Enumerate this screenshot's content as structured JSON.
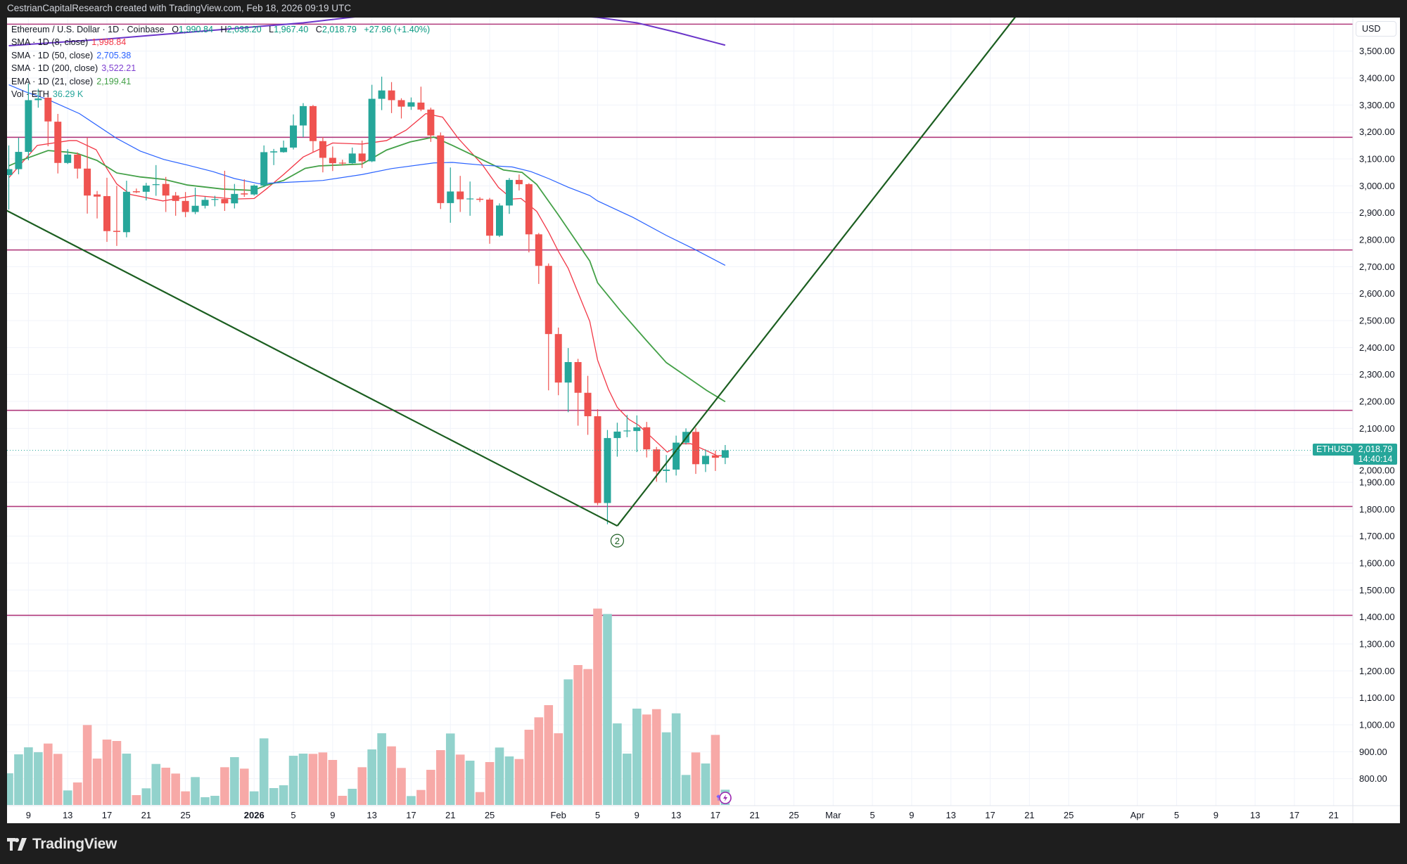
{
  "header": {
    "credit": "CestrianCapitalResearch created with TradingView.com, Feb 18, 2026 09:19 UTC"
  },
  "footer": {
    "brand": "TradingView"
  },
  "legend": {
    "symbol": "Ethereum / U.S. Dollar · 1D · Coinbase",
    "o_label": "O",
    "o_value": "1,990.84",
    "h_label": "H",
    "h_value": "2,038.20",
    "l_label": "L",
    "l_value": "1,967.40",
    "c_label": "C",
    "c_value": "2,018.79",
    "change": "+27.96 (+1.40%)",
    "indicators": [
      {
        "label": "SMA · 1D (8, close)",
        "value": "1,998.84",
        "color": "#f23645"
      },
      {
        "label": "SMA · 1D (50, close)",
        "value": "2,705.38",
        "color": "#2962ff"
      },
      {
        "label": "SMA · 1D (200, close)",
        "value": "3,522.21",
        "color": "#7e3fd0"
      },
      {
        "label": "EMA · 1D (21, close)",
        "value": "2,199.41",
        "color": "#43a047"
      },
      {
        "label": "Vol · ETH",
        "value": "36.29 K",
        "color": "#26a69a"
      }
    ]
  },
  "price_axis": {
    "currency": "USD",
    "symbol_tag": "ETHUSD",
    "last_price": "2,018.79",
    "countdown": "14:40:14"
  },
  "colors": {
    "up": "#26a69a",
    "down": "#ef5350",
    "vol_up": "#92d2cc",
    "vol_down": "#f7a9a7",
    "hline": "#b03a7c",
    "trendline": "#1b5e20",
    "sma8": "#f23645",
    "sma50": "#2962ff",
    "sma200": "#6a35c9",
    "ema21": "#43a047"
  },
  "chart_data": {
    "type": "candlestick",
    "title": "Ethereum / U.S. Dollar · 1D · Coinbase",
    "x_note": "index 0 = Dec 7, 2025, daily bars",
    "ylim": [
      700,
      3620
    ],
    "yticks": [
      "3,500.00",
      "3,400.00",
      "3,300.00",
      "3,200.00",
      "3,100.00",
      "3,000.00",
      "2,900.00",
      "2,800.00",
      "2,700.00",
      "2,600.00",
      "2,500.00",
      "2,400.00",
      "2,300.00",
      "2,200.00",
      "2,100.00",
      "2,000.00",
      "1,900.00",
      "1,800.00",
      "1,700.00",
      "1,600.00",
      "1,500.00",
      "1,400.00",
      "1,300.00",
      "1,200.00",
      "1,100.00",
      "1,000.00",
      "900.00",
      "800.00"
    ],
    "ytick_values": [
      3500,
      3400,
      3300,
      3200,
      3100,
      3000,
      2900,
      2800,
      2700,
      2600,
      2500,
      2400,
      2300,
      2200,
      2100,
      2000,
      1900,
      1800,
      1700,
      1600,
      1500,
      1400,
      1300,
      1200,
      1100,
      1000,
      900,
      800
    ],
    "xticks": [
      {
        "i": 2,
        "label": "9"
      },
      {
        "i": 6,
        "label": "13"
      },
      {
        "i": 10,
        "label": "17"
      },
      {
        "i": 14,
        "label": "21"
      },
      {
        "i": 18,
        "label": "25"
      },
      {
        "i": 25,
        "label": "2026",
        "bold": true
      },
      {
        "i": 29,
        "label": "5"
      },
      {
        "i": 33,
        "label": "9"
      },
      {
        "i": 37,
        "label": "13"
      },
      {
        "i": 41,
        "label": "17"
      },
      {
        "i": 45,
        "label": "21"
      },
      {
        "i": 49,
        "label": "25"
      },
      {
        "i": 56,
        "label": "Feb"
      },
      {
        "i": 60,
        "label": "5"
      },
      {
        "i": 64,
        "label": "9"
      },
      {
        "i": 68,
        "label": "13"
      },
      {
        "i": 72,
        "label": "17"
      },
      {
        "i": 76,
        "label": "21"
      },
      {
        "i": 80,
        "label": "25"
      },
      {
        "i": 84,
        "label": "Mar"
      },
      {
        "i": 88,
        "label": "5"
      },
      {
        "i": 92,
        "label": "9"
      },
      {
        "i": 96,
        "label": "13"
      },
      {
        "i": 100,
        "label": "17"
      },
      {
        "i": 104,
        "label": "21"
      },
      {
        "i": 108,
        "label": "25"
      },
      {
        "i": 115,
        "label": "Apr"
      },
      {
        "i": 119,
        "label": "5"
      },
      {
        "i": 123,
        "label": "9"
      },
      {
        "i": 127,
        "label": "13"
      },
      {
        "i": 131,
        "label": "17"
      },
      {
        "i": 135,
        "label": "21"
      }
    ],
    "ohlc": [
      [
        3040,
        3150,
        2912,
        3062
      ],
      [
        3062,
        3179,
        3043,
        3126
      ],
      [
        3126,
        3380,
        3095,
        3318
      ],
      [
        3318,
        3360,
        3290,
        3324
      ],
      [
        3327,
        3330,
        3147,
        3239
      ],
      [
        3238,
        3267,
        3046,
        3085
      ],
      [
        3085,
        3136,
        3081,
        3116
      ],
      [
        3116,
        3124,
        3027,
        3064
      ],
      [
        3064,
        3179,
        2897,
        2964
      ],
      [
        2968,
        2981,
        2879,
        2960
      ],
      [
        2962,
        3030,
        2792,
        2832
      ],
      [
        2833,
        3000,
        2777,
        2829
      ],
      [
        2828,
        3019,
        2809,
        2978
      ],
      [
        2980,
        2990,
        2973,
        2976
      ],
      [
        2978,
        3011,
        2946,
        3001
      ],
      [
        3003,
        3077,
        2963,
        3006
      ],
      [
        3007,
        3033,
        2903,
        2964
      ],
      [
        2964,
        2977,
        2889,
        2944
      ],
      [
        2944,
        2977,
        2884,
        2903
      ],
      [
        2903,
        2993,
        2895,
        2926
      ],
      [
        2926,
        2959,
        2916,
        2948
      ],
      [
        2948,
        2963,
        2924,
        2951
      ],
      [
        2951,
        3056,
        2907,
        2935
      ],
      [
        2935,
        3007,
        2916,
        2970
      ],
      [
        2972,
        3024,
        2959,
        2968
      ],
      [
        2968,
        3005,
        2964,
        3001
      ],
      [
        3001,
        3150,
        2995,
        3125
      ],
      [
        3124,
        3137,
        3077,
        3128
      ],
      [
        3125,
        3168,
        3123,
        3142
      ],
      [
        3142,
        3265,
        3135,
        3224
      ],
      [
        3224,
        3307,
        3181,
        3296
      ],
      [
        3296,
        3300,
        3124,
        3166
      ],
      [
        3166,
        3181,
        3050,
        3104
      ],
      [
        3104,
        3146,
        3055,
        3084
      ],
      [
        3086,
        3097,
        3075,
        3083
      ],
      [
        3084,
        3142,
        3082,
        3120
      ],
      [
        3120,
        3168,
        3066,
        3091
      ],
      [
        3091,
        3375,
        3088,
        3323
      ],
      [
        3323,
        3405,
        3281,
        3354
      ],
      [
        3354,
        3385,
        3270,
        3318
      ],
      [
        3318,
        3325,
        3250,
        3294
      ],
      [
        3294,
        3328,
        3282,
        3310
      ],
      [
        3309,
        3368,
        3277,
        3283
      ],
      [
        3283,
        3290,
        3163,
        3187
      ],
      [
        3187,
        3198,
        2914,
        2936
      ],
      [
        2936,
        3068,
        2863,
        2979
      ],
      [
        2979,
        3037,
        2903,
        2950
      ],
      [
        2950,
        3016,
        2889,
        2953
      ],
      [
        2952,
        2958,
        2940,
        2948
      ],
      [
        2949,
        2955,
        2785,
        2815
      ],
      [
        2815,
        2935,
        2810,
        2927
      ],
      [
        2927,
        3029,
        2896,
        3022
      ],
      [
        3022,
        3042,
        2983,
        3006
      ],
      [
        3006,
        3010,
        2753,
        2820
      ],
      [
        2820,
        2825,
        2636,
        2703
      ],
      [
        2703,
        2712,
        2241,
        2450
      ],
      [
        2450,
        2474,
        2223,
        2270
      ],
      [
        2270,
        2398,
        2160,
        2346
      ],
      [
        2346,
        2358,
        2110,
        2232
      ],
      [
        2232,
        2295,
        2076,
        2145
      ],
      [
        2145,
        2171,
        1815,
        1823
      ],
      [
        1823,
        2094,
        1744,
        2064
      ],
      [
        2064,
        2121,
        1995,
        2088
      ],
      [
        2089,
        2150,
        2067,
        2092
      ],
      [
        2090,
        2148,
        2012,
        2104
      ],
      [
        2104,
        2124,
        1992,
        2022
      ],
      [
        2022,
        2031,
        1902,
        1940
      ],
      [
        1942,
        2001,
        1899,
        1947
      ],
      [
        1947,
        2073,
        1925,
        2047
      ],
      [
        2047,
        2100,
        2040,
        2087
      ],
      [
        2087,
        2102,
        1931,
        1967
      ],
      [
        1967,
        2022,
        1938,
        1998
      ],
      [
        2000,
        2018,
        1942,
        1990.84
      ],
      [
        1990.84,
        2038.2,
        1967.4,
        2018.79
      ]
    ],
    "volume_k": [
      75.4,
      120.6,
      137.3,
      125.6,
      146.3,
      121.7,
      34.6,
      53.6,
      190.4,
      110.5,
      155.8,
      152.4,
      122.3,
      23.4,
      39.6,
      97.7,
      88.8,
      74.8,
      32.4,
      66.4,
      18.4,
      21.8,
      89.9,
      113.9,
      86.5,
      32.4,
      158.6,
      40.2,
      46.9,
      117.2,
      122.3,
      121.7,
      125.1,
      107.2,
      21.8,
      38.5,
      89.9,
      132.3,
      170.8,
      139.6,
      88.2,
      21.2,
      35.7,
      83.7,
      130.6,
      170.3,
      120.0,
      105.5,
      30.7,
      102.2,
      136.8,
      115.6,
      109.4,
      179.2,
      208.8,
      237.8,
      170.8,
      299.2,
      333.3,
      323.8,
      467.9,
      455.0,
      194.3,
      122.3,
      229.5,
      215.5,
      228.3,
      173.1,
      218.3,
      71.5,
      125.1,
      98.8,
      166.9,
      36.29
    ],
    "series": [
      {
        "name": "SMA 8",
        "key": "sma8",
        "points": [
          [
            0,
            3030
          ],
          [
            2.9,
            3150
          ],
          [
            6.2,
            3168
          ],
          [
            6.9,
            3168
          ],
          [
            8.9,
            3134
          ],
          [
            10,
            3064
          ],
          [
            11,
            3007
          ],
          [
            12.4,
            2968
          ],
          [
            15.7,
            2944
          ],
          [
            19,
            2964
          ],
          [
            23,
            2951
          ],
          [
            25,
            2953
          ],
          [
            26.3,
            2990
          ],
          [
            28,
            3042
          ],
          [
            30,
            3107
          ],
          [
            33,
            3159
          ],
          [
            36,
            3155
          ],
          [
            38.5,
            3168
          ],
          [
            40.5,
            3207
          ],
          [
            42.5,
            3268
          ],
          [
            44.2,
            3255
          ],
          [
            45.8,
            3176
          ],
          [
            48.2,
            3081
          ],
          [
            49.9,
            2994
          ],
          [
            51.3,
            2951
          ],
          [
            52.2,
            2953
          ],
          [
            53.8,
            2905
          ],
          [
            55,
            2829
          ],
          [
            56,
            2757
          ],
          [
            57,
            2694
          ],
          [
            58,
            2604
          ],
          [
            59.2,
            2497
          ],
          [
            60,
            2353
          ],
          [
            61.1,
            2245
          ],
          [
            62,
            2178
          ],
          [
            63.2,
            2133
          ],
          [
            64.2,
            2111
          ],
          [
            66.2,
            2043
          ],
          [
            67.1,
            2012
          ],
          [
            68.6,
            2043
          ],
          [
            69.5,
            2043
          ],
          [
            71.4,
            2012
          ],
          [
            72.2,
            1998
          ],
          [
            73,
            1999
          ]
        ]
      },
      {
        "name": "EMA 21",
        "key": "ema21",
        "points": [
          [
            0,
            3074
          ],
          [
            1.5,
            3098
          ],
          [
            4,
            3131
          ],
          [
            6,
            3125
          ],
          [
            7,
            3120
          ],
          [
            9,
            3094
          ],
          [
            11,
            3048
          ],
          [
            13.4,
            3033
          ],
          [
            15.8,
            3024
          ],
          [
            18.2,
            3003
          ],
          [
            21.8,
            2988
          ],
          [
            24.9,
            2983
          ],
          [
            26.3,
            3003
          ],
          [
            28,
            3020
          ],
          [
            30.2,
            3065
          ],
          [
            31.6,
            3074
          ],
          [
            36,
            3081
          ],
          [
            38.5,
            3133
          ],
          [
            40.9,
            3163
          ],
          [
            43.3,
            3181
          ],
          [
            45.2,
            3150
          ],
          [
            48.2,
            3098
          ],
          [
            50.4,
            3059
          ],
          [
            52.3,
            3050
          ],
          [
            53.8,
            3005
          ],
          [
            56,
            2892
          ],
          [
            59.2,
            2721
          ],
          [
            60,
            2640
          ],
          [
            62.4,
            2533
          ],
          [
            65,
            2425
          ],
          [
            67,
            2344
          ],
          [
            69,
            2294
          ],
          [
            71.1,
            2241
          ],
          [
            73,
            2199
          ]
        ]
      },
      {
        "name": "SMA 50",
        "key": "sma50",
        "points": [
          [
            0,
            3375
          ],
          [
            1.7,
            3349
          ],
          [
            4,
            3320
          ],
          [
            7.2,
            3268
          ],
          [
            11,
            3176
          ],
          [
            13.4,
            3129
          ],
          [
            15.8,
            3098
          ],
          [
            18.2,
            3077
          ],
          [
            20.8,
            3053
          ],
          [
            23,
            3027
          ],
          [
            25.5,
            3008
          ],
          [
            30,
            3016
          ],
          [
            32,
            3020
          ],
          [
            36,
            3042
          ],
          [
            39,
            3064
          ],
          [
            43.3,
            3085
          ],
          [
            45.2,
            3087
          ],
          [
            48.2,
            3077
          ],
          [
            51.3,
            3070
          ],
          [
            53.2,
            3053
          ],
          [
            55,
            3027
          ],
          [
            57,
            2995
          ],
          [
            59.2,
            2964
          ],
          [
            60,
            2944
          ],
          [
            63.6,
            2883
          ],
          [
            67,
            2816
          ],
          [
            69.8,
            2766
          ],
          [
            73,
            2705
          ]
        ]
      },
      {
        "name": "SMA 200",
        "key": "sma200",
        "points": [
          [
            0,
            3520
          ],
          [
            10,
            3545
          ],
          [
            20,
            3575
          ],
          [
            30,
            3605
          ],
          [
            36,
            3630
          ],
          [
            45,
            3650
          ],
          [
            55,
            3640
          ],
          [
            60,
            3625
          ],
          [
            64,
            3605
          ],
          [
            68,
            3570
          ],
          [
            73,
            3522
          ]
        ]
      }
    ],
    "horizontal_levels": [
      3600,
      3180,
      2762,
      2167,
      1810,
      1406
    ],
    "trendlines": [
      [
        [
          -0.2,
          2908
        ],
        [
          62,
          1738
        ]
      ],
      [
        [
          62,
          1738
        ],
        [
          102.7,
          3633
        ]
      ]
    ],
    "annotations": [
      {
        "i": 62,
        "price": 1683,
        "label": "2"
      }
    ],
    "last_price": 2018.79
  }
}
